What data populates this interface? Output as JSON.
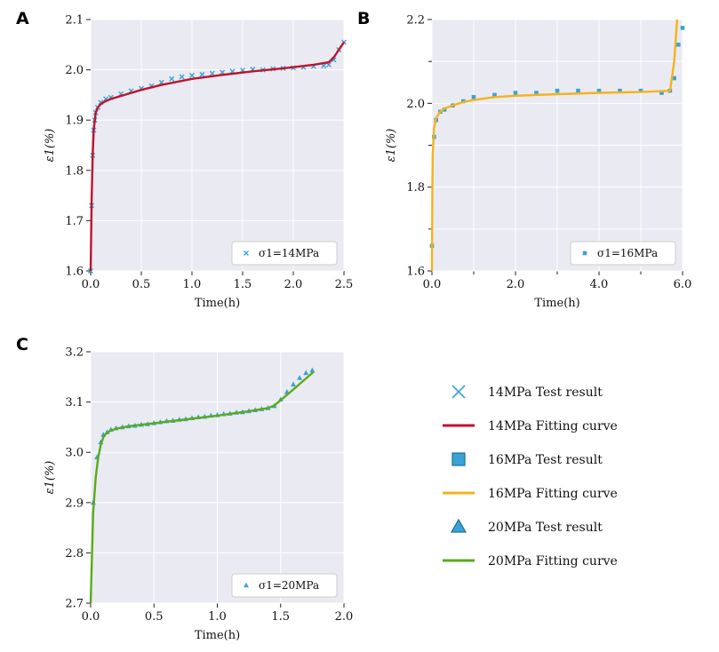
{
  "chart_data": [
    {
      "panel": "A",
      "type": "scatter",
      "xlabel": "Time(h)",
      "ylabel": "ε1(%)",
      "xlim": [
        0.0,
        2.5
      ],
      "ylim": [
        1.6,
        2.1
      ],
      "xticks": [
        "0.0",
        "0.5",
        "1.0",
        "1.5",
        "2.0",
        "2.5"
      ],
      "yticks": [
        "1.6",
        "1.7",
        "1.8",
        "1.9",
        "2.0",
        "2.1"
      ],
      "legend": "σ1=14MPa",
      "legend_position": "bottom-right",
      "marker_color": "#3aa3d4",
      "fit_color": "#c0122e",
      "series": [
        {
          "name": "14MPa Test result",
          "marker": "x",
          "x": [
            0.0,
            0.01,
            0.02,
            0.03,
            0.04,
            0.05,
            0.07,
            0.1,
            0.15,
            0.2,
            0.3,
            0.4,
            0.5,
            0.6,
            0.7,
            0.8,
            0.9,
            1.0,
            1.1,
            1.2,
            1.3,
            1.4,
            1.5,
            1.6,
            1.7,
            1.8,
            1.9,
            2.0,
            2.1,
            2.2,
            2.3,
            2.35,
            2.4,
            2.45,
            2.5
          ],
          "y": [
            1.6,
            1.73,
            1.83,
            1.88,
            1.9,
            1.915,
            1.925,
            1.935,
            1.942,
            1.945,
            1.952,
            1.958,
            1.963,
            1.968,
            1.975,
            1.982,
            1.986,
            1.989,
            1.991,
            1.993,
            1.995,
            1.997,
            1.999,
            2.001,
            2.0,
            2.002,
            2.003,
            2.004,
            2.005,
            2.007,
            2.008,
            2.01,
            2.02,
            2.04,
            2.055
          ]
        },
        {
          "name": "14MPa Fitting curve",
          "marker": "line",
          "x": [
            0.0,
            0.01,
            0.02,
            0.03,
            0.05,
            0.07,
            0.1,
            0.15,
            0.2,
            0.3,
            0.5,
            0.7,
            1.0,
            1.3,
            1.6,
            1.9,
            2.2,
            2.35,
            2.4,
            2.45,
            2.5
          ],
          "y": [
            1.6,
            1.74,
            1.83,
            1.88,
            1.915,
            1.925,
            1.932,
            1.938,
            1.942,
            1.948,
            1.96,
            1.97,
            1.982,
            1.99,
            1.997,
            2.003,
            2.01,
            2.015,
            2.025,
            2.04,
            2.055
          ]
        }
      ]
    },
    {
      "panel": "B",
      "type": "scatter",
      "xlabel": "Time(h)",
      "ylabel": "ε1(%)",
      "xlim": [
        0.0,
        6.0
      ],
      "ylim": [
        1.6,
        2.2
      ],
      "xticks": [
        "0.0",
        "2.0",
        "4.0",
        "6.0"
      ],
      "yticks": [
        "1.6",
        "1.8",
        "2.0",
        "2.2"
      ],
      "legend": "σ1=16MPa",
      "legend_position": "bottom-right",
      "marker_color": "#3aa3d4",
      "fit_color": "#f5b21b",
      "series": [
        {
          "name": "16MPa Test result",
          "marker": "s",
          "x": [
            0.0,
            0.05,
            0.1,
            0.2,
            0.3,
            0.5,
            0.75,
            1.0,
            1.5,
            2.0,
            2.5,
            3.0,
            3.5,
            4.0,
            4.5,
            5.0,
            5.5,
            5.7,
            5.8,
            5.9,
            6.0
          ],
          "y": [
            1.66,
            1.92,
            1.96,
            1.98,
            1.985,
            1.995,
            2.005,
            2.015,
            2.02,
            2.025,
            2.025,
            2.03,
            2.03,
            2.03,
            2.03,
            2.03,
            2.025,
            2.03,
            2.06,
            2.14,
            2.18
          ]
        },
        {
          "name": "16MPa Fitting curve",
          "marker": "line",
          "x": [
            0.0,
            0.01,
            0.02,
            0.05,
            0.1,
            0.2,
            0.3,
            0.5,
            0.75,
            1.0,
            1.5,
            2.0,
            3.0,
            4.0,
            5.0,
            5.7,
            5.8,
            5.87
          ],
          "y": [
            1.6,
            1.8,
            1.88,
            1.94,
            1.965,
            1.98,
            1.988,
            1.995,
            2.003,
            2.008,
            2.015,
            2.018,
            2.022,
            2.025,
            2.027,
            2.03,
            2.1,
            2.2
          ]
        }
      ]
    },
    {
      "panel": "C",
      "type": "scatter",
      "xlabel": "Time(h)",
      "ylabel": "ε1(%)",
      "xlim": [
        0.0,
        2.0
      ],
      "ylim": [
        2.7,
        3.2
      ],
      "xticks": [
        "0.0",
        "0.5",
        "1.0",
        "1.5",
        "2.0"
      ],
      "yticks": [
        "2.7",
        "2.8",
        "2.9",
        "3.0",
        "3.1",
        "3.2"
      ],
      "legend": "σ1=20MPa",
      "legend_position": "bottom-right",
      "marker_color": "#3aa3d4",
      "fit_color": "#5aaa1a",
      "series": [
        {
          "name": "20MPa Test result",
          "marker": "^",
          "x": [
            0.02,
            0.05,
            0.08,
            0.1,
            0.13,
            0.16,
            0.2,
            0.25,
            0.3,
            0.35,
            0.4,
            0.45,
            0.5,
            0.55,
            0.6,
            0.65,
            0.7,
            0.75,
            0.8,
            0.85,
            0.9,
            0.95,
            1.0,
            1.05,
            1.1,
            1.15,
            1.2,
            1.25,
            1.3,
            1.35,
            1.4,
            1.45,
            1.5,
            1.55,
            1.6,
            1.65,
            1.7,
            1.75
          ],
          "y": [
            2.9,
            2.99,
            3.02,
            3.035,
            3.04,
            3.045,
            3.048,
            3.05,
            3.052,
            3.053,
            3.055,
            3.056,
            3.058,
            3.06,
            3.062,
            3.063,
            3.065,
            3.066,
            3.068,
            3.07,
            3.071,
            3.073,
            3.074,
            3.076,
            3.077,
            3.079,
            3.08,
            3.082,
            3.084,
            3.086,
            3.088,
            3.092,
            3.105,
            3.12,
            3.135,
            3.148,
            3.158,
            3.163
          ]
        },
        {
          "name": "20MPa Fitting curve",
          "marker": "line",
          "x": [
            0.0,
            0.02,
            0.04,
            0.06,
            0.08,
            0.1,
            0.12,
            0.15,
            0.2,
            0.3,
            0.5,
            0.7,
            1.0,
            1.2,
            1.4,
            1.45,
            1.6,
            1.76
          ],
          "y": [
            2.7,
            2.88,
            2.95,
            2.99,
            3.015,
            3.03,
            3.037,
            3.042,
            3.047,
            3.052,
            3.058,
            3.064,
            3.073,
            3.08,
            3.088,
            3.093,
            3.125,
            3.16
          ]
        }
      ]
    }
  ],
  "shared_legend": [
    {
      "label": "14MPa Test result",
      "marker": "x",
      "color": "#3aa3d4"
    },
    {
      "label": "14MPa Fitting curve",
      "marker": "line",
      "color": "#c0122e"
    },
    {
      "label": "16MPa Test result",
      "marker": "s",
      "color": "#3aa3d4"
    },
    {
      "label": "16MPa Fitting curve",
      "marker": "line",
      "color": "#f5b21b"
    },
    {
      "label": "20MPa Test result",
      "marker": "^",
      "color": "#3aa3d4"
    },
    {
      "label": "20MPa Fitting curve",
      "marker": "line",
      "color": "#5aaa1a"
    }
  ]
}
